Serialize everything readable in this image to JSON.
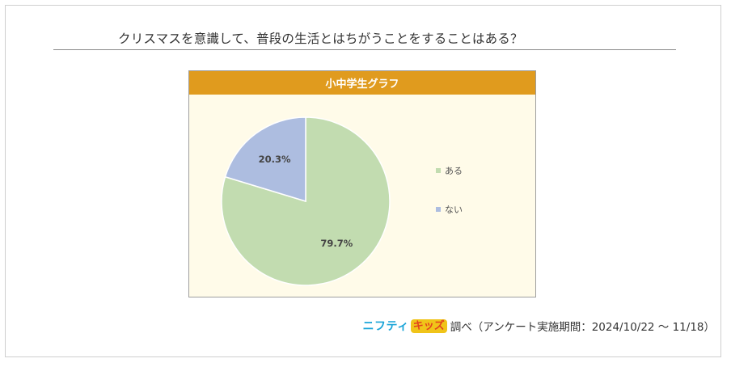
{
  "question": "クリスマスを意識して、普段の生活とはちがうことをすることはある？",
  "chart_data": {
    "type": "pie",
    "title": "小中学生グラフ",
    "slices": [
      {
        "label": "ある",
        "value": 79.7,
        "display": "79.7%",
        "color": "#c2dcb0"
      },
      {
        "label": "ない",
        "value": 20.3,
        "display": "20.3%",
        "color": "#adbde0"
      }
    ],
    "legend_position": "right",
    "header_color": "#e09b1e",
    "panel_background": "#fffbe9"
  },
  "footer": {
    "logo_text_a": "ニフティ",
    "logo_text_b": "キッズ",
    "source": "調べ（アンケート実施期間：2024/10/22 ～ 11/18）"
  }
}
